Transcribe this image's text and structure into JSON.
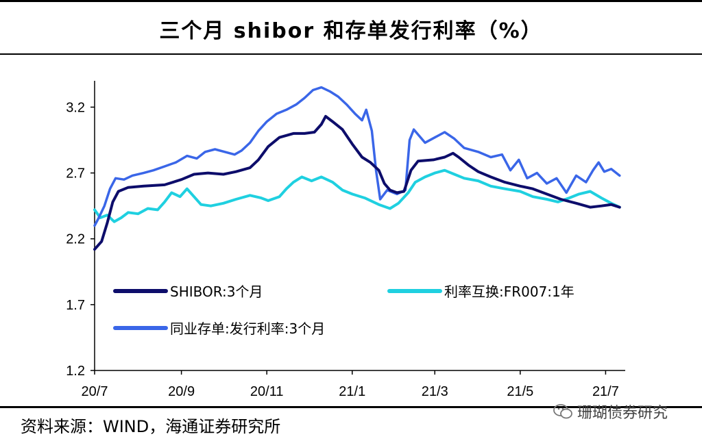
{
  "header": {
    "title": "三个月 shibor 和存单发行利率（%）"
  },
  "footer": {
    "source": "资料来源：WIND，海通证券研究所",
    "watermark": "珊瑚债券研究"
  },
  "colors": {
    "shibor": "#0d0d6b",
    "fr007": "#1fd0e0",
    "ncd": "#3a66e8"
  },
  "chart_data": {
    "type": "line",
    "title": "三个月 shibor 和存单发行利率（%）",
    "xlabel": "",
    "ylabel": "",
    "ylim": [
      1.2,
      3.4
    ],
    "y_ticks": [
      1.2,
      1.7,
      2.2,
      2.7,
      3.2
    ],
    "y_tick_labels": [
      "1.2",
      "1.7",
      "2.2",
      "2.7",
      "3.2"
    ],
    "xlim": [
      "2020-07-01",
      "2021-07-15"
    ],
    "x_ticks": [
      "2020-07-01",
      "2020-09-01",
      "2020-11-01",
      "2021-01-01",
      "2021-03-01",
      "2021-05-01",
      "2021-07-01"
    ],
    "x_tick_labels": [
      "20/7",
      "20/9",
      "20/11",
      "21/1",
      "21/3",
      "21/5",
      "21/7"
    ],
    "grid": false,
    "legend": [
      {
        "series": "SHIBOR:3个月",
        "position": "middle-left"
      },
      {
        "series": "利率互换:FR007:1年",
        "position": "middle-right"
      },
      {
        "series": "同业存单:发行利率:3个月",
        "position": "lower-left"
      }
    ],
    "series": [
      {
        "name": "SHIBOR:3个月",
        "color": "#0d0d6b",
        "points": [
          [
            "2020-07-01",
            2.12
          ],
          [
            "2020-07-06",
            2.18
          ],
          [
            "2020-07-10",
            2.32
          ],
          [
            "2020-07-14",
            2.48
          ],
          [
            "2020-07-18",
            2.56
          ],
          [
            "2020-07-25",
            2.59
          ],
          [
            "2020-08-05",
            2.6
          ],
          [
            "2020-08-20",
            2.61
          ],
          [
            "2020-09-01",
            2.65
          ],
          [
            "2020-09-10",
            2.69
          ],
          [
            "2020-09-20",
            2.7
          ],
          [
            "2020-10-01",
            2.69
          ],
          [
            "2020-10-10",
            2.71
          ],
          [
            "2020-10-20",
            2.74
          ],
          [
            "2020-10-26",
            2.8
          ],
          [
            "2020-11-02",
            2.9
          ],
          [
            "2020-11-10",
            2.97
          ],
          [
            "2020-11-20",
            3.0
          ],
          [
            "2020-11-28",
            3.0
          ],
          [
            "2020-12-05",
            3.01
          ],
          [
            "2020-12-10",
            3.07
          ],
          [
            "2020-12-13",
            3.13
          ],
          [
            "2020-12-18",
            3.09
          ],
          [
            "2020-12-25",
            3.03
          ],
          [
            "2021-01-01",
            2.92
          ],
          [
            "2021-01-08",
            2.82
          ],
          [
            "2021-01-14",
            2.78
          ],
          [
            "2021-01-20",
            2.72
          ],
          [
            "2021-01-24",
            2.62
          ],
          [
            "2021-01-28",
            2.57
          ],
          [
            "2021-02-02",
            2.55
          ],
          [
            "2021-02-07",
            2.56
          ],
          [
            "2021-02-12",
            2.72
          ],
          [
            "2021-02-17",
            2.79
          ],
          [
            "2021-02-28",
            2.8
          ],
          [
            "2021-03-08",
            2.82
          ],
          [
            "2021-03-14",
            2.85
          ],
          [
            "2021-03-18",
            2.82
          ],
          [
            "2021-03-25",
            2.76
          ],
          [
            "2021-04-01",
            2.71
          ],
          [
            "2021-04-10",
            2.67
          ],
          [
            "2021-04-20",
            2.63
          ],
          [
            "2021-05-01",
            2.6
          ],
          [
            "2021-05-10",
            2.58
          ],
          [
            "2021-05-20",
            2.54
          ],
          [
            "2021-05-30",
            2.5
          ],
          [
            "2021-06-10",
            2.47
          ],
          [
            "2021-06-20",
            2.44
          ],
          [
            "2021-06-28",
            2.45
          ],
          [
            "2021-07-05",
            2.46
          ],
          [
            "2021-07-11",
            2.44
          ]
        ]
      },
      {
        "name": "利率互换:FR007:1年",
        "color": "#1fd0e0",
        "points": [
          [
            "2020-07-01",
            2.42
          ],
          [
            "2020-07-05",
            2.36
          ],
          [
            "2020-07-10",
            2.38
          ],
          [
            "2020-07-15",
            2.33
          ],
          [
            "2020-07-20",
            2.36
          ],
          [
            "2020-07-25",
            2.4
          ],
          [
            "2020-08-01",
            2.39
          ],
          [
            "2020-08-08",
            2.43
          ],
          [
            "2020-08-15",
            2.42
          ],
          [
            "2020-08-20",
            2.48
          ],
          [
            "2020-08-25",
            2.55
          ],
          [
            "2020-08-31",
            2.52
          ],
          [
            "2020-09-05",
            2.58
          ],
          [
            "2020-09-10",
            2.52
          ],
          [
            "2020-09-15",
            2.46
          ],
          [
            "2020-09-22",
            2.45
          ],
          [
            "2020-10-01",
            2.47
          ],
          [
            "2020-10-10",
            2.5
          ],
          [
            "2020-10-20",
            2.53
          ],
          [
            "2020-10-28",
            2.51
          ],
          [
            "2020-11-02",
            2.49
          ],
          [
            "2020-11-10",
            2.52
          ],
          [
            "2020-11-15",
            2.58
          ],
          [
            "2020-11-20",
            2.63
          ],
          [
            "2020-11-26",
            2.67
          ],
          [
            "2020-12-03",
            2.64
          ],
          [
            "2020-12-10",
            2.67
          ],
          [
            "2020-12-18",
            2.63
          ],
          [
            "2020-12-25",
            2.57
          ],
          [
            "2021-01-01",
            2.54
          ],
          [
            "2021-01-10",
            2.51
          ],
          [
            "2021-01-20",
            2.46
          ],
          [
            "2021-01-28",
            2.43
          ],
          [
            "2021-02-03",
            2.47
          ],
          [
            "2021-02-10",
            2.55
          ],
          [
            "2021-02-15",
            2.63
          ],
          [
            "2021-02-22",
            2.67
          ],
          [
            "2021-03-01",
            2.7
          ],
          [
            "2021-03-08",
            2.72
          ],
          [
            "2021-03-15",
            2.69
          ],
          [
            "2021-03-22",
            2.66
          ],
          [
            "2021-04-01",
            2.64
          ],
          [
            "2021-04-10",
            2.6
          ],
          [
            "2021-04-20",
            2.58
          ],
          [
            "2021-05-01",
            2.56
          ],
          [
            "2021-05-10",
            2.52
          ],
          [
            "2021-05-20",
            2.5
          ],
          [
            "2021-05-28",
            2.48
          ],
          [
            "2021-06-05",
            2.51
          ],
          [
            "2021-06-12",
            2.54
          ],
          [
            "2021-06-20",
            2.56
          ],
          [
            "2021-06-28",
            2.51
          ],
          [
            "2021-07-05",
            2.47
          ],
          [
            "2021-07-11",
            2.44
          ]
        ]
      },
      {
        "name": "同业存单:发行利率:3个月",
        "color": "#3a66e8",
        "points": [
          [
            "2020-07-01",
            2.3
          ],
          [
            "2020-07-04",
            2.36
          ],
          [
            "2020-07-08",
            2.45
          ],
          [
            "2020-07-12",
            2.58
          ],
          [
            "2020-07-16",
            2.66
          ],
          [
            "2020-07-22",
            2.65
          ],
          [
            "2020-07-28",
            2.68
          ],
          [
            "2020-08-05",
            2.7
          ],
          [
            "2020-08-12",
            2.72
          ],
          [
            "2020-08-20",
            2.75
          ],
          [
            "2020-08-28",
            2.78
          ],
          [
            "2020-09-05",
            2.83
          ],
          [
            "2020-09-12",
            2.81
          ],
          [
            "2020-09-18",
            2.86
          ],
          [
            "2020-09-25",
            2.88
          ],
          [
            "2020-10-02",
            2.86
          ],
          [
            "2020-10-09",
            2.84
          ],
          [
            "2020-10-14",
            2.87
          ],
          [
            "2020-10-20",
            2.93
          ],
          [
            "2020-10-26",
            3.02
          ],
          [
            "2020-11-01",
            3.09
          ],
          [
            "2020-11-08",
            3.15
          ],
          [
            "2020-11-15",
            3.18
          ],
          [
            "2020-11-22",
            3.22
          ],
          [
            "2020-11-28",
            3.27
          ],
          [
            "2020-12-04",
            3.33
          ],
          [
            "2020-12-10",
            3.35
          ],
          [
            "2020-12-16",
            3.32
          ],
          [
            "2020-12-22",
            3.28
          ],
          [
            "2020-12-28",
            3.22
          ],
          [
            "2021-01-03",
            3.15
          ],
          [
            "2021-01-08",
            3.1
          ],
          [
            "2021-01-11",
            3.18
          ],
          [
            "2021-01-15",
            3.02
          ],
          [
            "2021-01-18",
            2.72
          ],
          [
            "2021-01-21",
            2.5
          ],
          [
            "2021-01-26",
            2.57
          ],
          [
            "2021-02-02",
            2.54
          ],
          [
            "2021-02-08",
            2.57
          ],
          [
            "2021-02-11",
            2.95
          ],
          [
            "2021-02-14",
            3.03
          ],
          [
            "2021-02-22",
            2.93
          ],
          [
            "2021-03-01",
            2.97
          ],
          [
            "2021-03-08",
            3.01
          ],
          [
            "2021-03-15",
            2.96
          ],
          [
            "2021-03-22",
            2.89
          ],
          [
            "2021-04-01",
            2.86
          ],
          [
            "2021-04-10",
            2.82
          ],
          [
            "2021-04-18",
            2.84
          ],
          [
            "2021-04-24",
            2.72
          ],
          [
            "2021-04-30",
            2.8
          ],
          [
            "2021-05-06",
            2.66
          ],
          [
            "2021-05-13",
            2.7
          ],
          [
            "2021-05-20",
            2.62
          ],
          [
            "2021-05-27",
            2.66
          ],
          [
            "2021-06-03",
            2.55
          ],
          [
            "2021-06-10",
            2.68
          ],
          [
            "2021-06-17",
            2.63
          ],
          [
            "2021-06-22",
            2.72
          ],
          [
            "2021-06-26",
            2.78
          ],
          [
            "2021-06-30",
            2.71
          ],
          [
            "2021-07-05",
            2.73
          ],
          [
            "2021-07-11",
            2.68
          ]
        ]
      }
    ]
  }
}
